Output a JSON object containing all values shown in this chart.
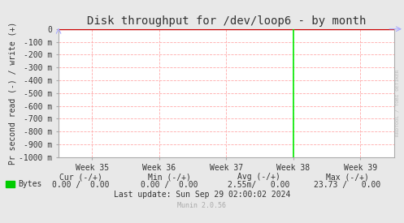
{
  "title": "Disk throughput for /dev/loop6 - by month",
  "ylabel": "Pr second read (-) / write (+)",
  "xlabel_ticks": [
    "Week 35",
    "Week 36",
    "Week 37",
    "Week 38",
    "Week 39"
  ],
  "ylim": [
    -1000,
    0
  ],
  "yticks": [
    0,
    -100,
    -200,
    -300,
    -400,
    -500,
    -600,
    -700,
    -800,
    -900,
    -1000
  ],
  "ytick_labels": [
    "0",
    "-100 m",
    "-200 m",
    "-300 m",
    "-400 m",
    "-500 m",
    "-600 m",
    "-700 m",
    "-800 m",
    "-900 m",
    "-1000 m"
  ],
  "bg_color": "#e8e8e8",
  "plot_bg_color": "#ffffff",
  "grid_color": "#ffaaaa",
  "title_color": "#333333",
  "axis_color": "#aaaaaa",
  "tick_color": "#333333",
  "line_color": "#00ee00",
  "top_line_color": "#cc0000",
  "arrow_color": "#aaaaff",
  "watermark_text": "RRDTOOL / TOBI OETIKER",
  "legend_label": "Bytes",
  "legend_color": "#00cc00",
  "footer_munin": "Munin 2.0.56",
  "green_line_x": 38,
  "xlim_weeks": [
    34.5,
    39.5
  ],
  "week_positions": [
    35,
    36,
    37,
    38,
    39
  ]
}
